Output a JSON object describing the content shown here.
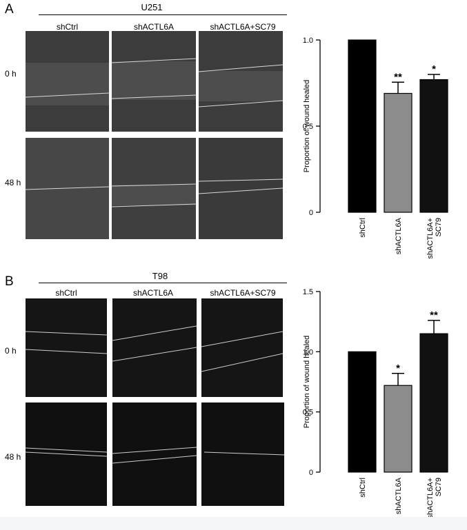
{
  "panels": [
    {
      "letter": "A",
      "cell_line": "U251",
      "columns": [
        "shCtrl",
        "shACTL6A",
        "shACTL6A+SC79"
      ],
      "rows": [
        "0 h",
        "48 h"
      ]
    },
    {
      "letter": "B",
      "cell_line": "T98",
      "columns": [
        "shCtrl",
        "shACTL6A",
        "shACTL6A+SC79"
      ],
      "rows": [
        "0 h",
        "48 h"
      ]
    }
  ],
  "colors": {
    "bar_black": "#000000",
    "bar_gray": "#8c8c8c",
    "u251_image": "#4a4a4a",
    "t98_image": "#141414",
    "wound_line": "#d9d9d9"
  },
  "chart_data": [
    {
      "type": "bar",
      "title": "",
      "xlabel": "",
      "ylabel": "Proportion of wound healed",
      "categories": [
        "shCtrl",
        "shACTL6A",
        "shACTL6A+\nSC79"
      ],
      "values": [
        1.0,
        0.69,
        0.77
      ],
      "errors": [
        0,
        0.065,
        0.03
      ],
      "significance": [
        "",
        "**",
        "*"
      ],
      "ylim": [
        0,
        1.0
      ],
      "yticks": [
        "0",
        "0.5",
        "1.0"
      ],
      "ytick_values": [
        0,
        0.5,
        1.0
      ],
      "bar_colors": [
        "#000000",
        "#8c8c8c",
        "#111111"
      ],
      "grid": false
    },
    {
      "type": "bar",
      "title": "",
      "xlabel": "",
      "ylabel": "Proportion of wound healed",
      "categories": [
        "shCtrl",
        "shACTL6A",
        "shACTL6A+\nSC79"
      ],
      "values": [
        1.0,
        0.72,
        1.15
      ],
      "errors": [
        0,
        0.1,
        0.11
      ],
      "significance": [
        "",
        "*",
        "**"
      ],
      "ylim": [
        0,
        1.5
      ],
      "yticks": [
        "0",
        "0.5",
        "1.0",
        "1.5"
      ],
      "ytick_values": [
        0,
        0.5,
        1.0,
        1.5
      ],
      "bar_colors": [
        "#000000",
        "#8c8c8c",
        "#111111"
      ],
      "grid": false
    }
  ]
}
